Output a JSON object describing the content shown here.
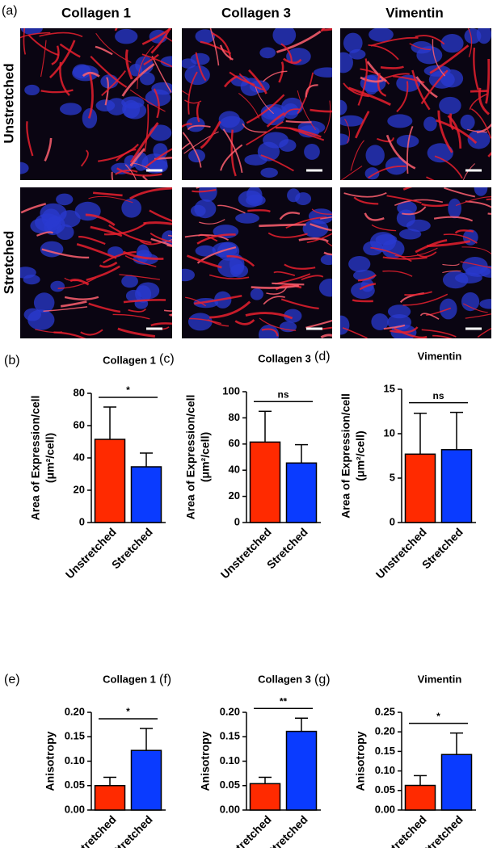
{
  "figure_a": {
    "label": "(a)",
    "columns": [
      "Collagen 1",
      "Collagen 3",
      "Vimentin"
    ],
    "rows": [
      "Unstretched",
      "Stretched"
    ]
  },
  "chart_data": [
    {
      "type": "bar",
      "label": "(b)",
      "title": "Collagen 1",
      "ylabel": [
        "Area of Expression/cell",
        "(μm²/cell)"
      ],
      "categories": [
        "Unstretched",
        "Stretched"
      ],
      "values": [
        51.5,
        34.5
      ],
      "errors": [
        20,
        8.5
      ],
      "colors": [
        "#ff2a00",
        "#0a3bff"
      ],
      "ylim": [
        0,
        80
      ],
      "yticks": [
        0,
        20,
        40,
        60,
        80
      ],
      "significance": "*"
    },
    {
      "type": "bar",
      "label": "(c)",
      "title": "Collagen 3",
      "ylabel": [
        "Area of Expression/cell",
        "(μm²/cell)"
      ],
      "categories": [
        "Unstretched",
        "Stretched"
      ],
      "values": [
        61.5,
        45.5
      ],
      "errors": [
        23.5,
        14
      ],
      "colors": [
        "#ff2a00",
        "#0a3bff"
      ],
      "ylim": [
        0,
        100
      ],
      "yticks": [
        0,
        20,
        40,
        60,
        80,
        100
      ],
      "significance": "ns"
    },
    {
      "type": "bar",
      "label": "(d)",
      "title": "Vimentin",
      "ylabel": [
        "Area of Expression/cell",
        "(μm²/cell)"
      ],
      "categories": [
        "Unstretched",
        "Stretched"
      ],
      "values": [
        7.7,
        8.2
      ],
      "errors": [
        4.6,
        4.2
      ],
      "colors": [
        "#ff2a00",
        "#0a3bff"
      ],
      "ylim": [
        0,
        15
      ],
      "yticks": [
        0,
        5,
        10,
        15
      ],
      "significance": "ns"
    },
    {
      "type": "bar",
      "label": "(e)",
      "title": "Collagen 1",
      "ylabel": [
        "Anisotropy"
      ],
      "categories": [
        "Unstretched",
        "Stretched"
      ],
      "values": [
        0.05,
        0.122
      ],
      "errors": [
        0.017,
        0.045
      ],
      "colors": [
        "#ff2a00",
        "#0a3bff"
      ],
      "ylim": [
        0,
        0.2
      ],
      "yticks": [
        {
          "value": 0,
          "label": "0.00"
        },
        0.05,
        {
          "value": 0.1,
          "label": "0.10"
        },
        0.15,
        {
          "value": 0.2,
          "label": "0.20"
        }
      ],
      "significance": "*"
    },
    {
      "type": "bar",
      "label": "(f)",
      "title": "Collagen 3",
      "ylabel": [
        "Anisotropy"
      ],
      "categories": [
        "Unstretched",
        "Stretched"
      ],
      "values": [
        0.054,
        0.161
      ],
      "errors": [
        0.013,
        0.027
      ],
      "colors": [
        "#ff2a00",
        "#0a3bff"
      ],
      "ylim": [
        0,
        0.2
      ],
      "yticks": [
        {
          "value": 0,
          "label": "0.00"
        },
        0.05,
        {
          "value": 0.1,
          "label": "0.10"
        },
        0.15,
        {
          "value": 0.2,
          "label": "0.20"
        }
      ],
      "significance": "**"
    },
    {
      "type": "bar",
      "label": "(g)",
      "title": "Vimentin",
      "ylabel": [
        "Anisotropy"
      ],
      "categories": [
        "Unstretched",
        "Stretched"
      ],
      "values": [
        0.063,
        0.142
      ],
      "errors": [
        0.025,
        0.055
      ],
      "colors": [
        "#ff2a00",
        "#0a3bff"
      ],
      "ylim": [
        0,
        0.25
      ],
      "yticks": [
        {
          "value": 0,
          "label": "0.00"
        },
        0.05,
        {
          "value": 0.1,
          "label": "0.10"
        },
        0.15,
        {
          "value": 0.2,
          "label": "0.20"
        },
        0.25
      ],
      "significance": "*"
    }
  ]
}
